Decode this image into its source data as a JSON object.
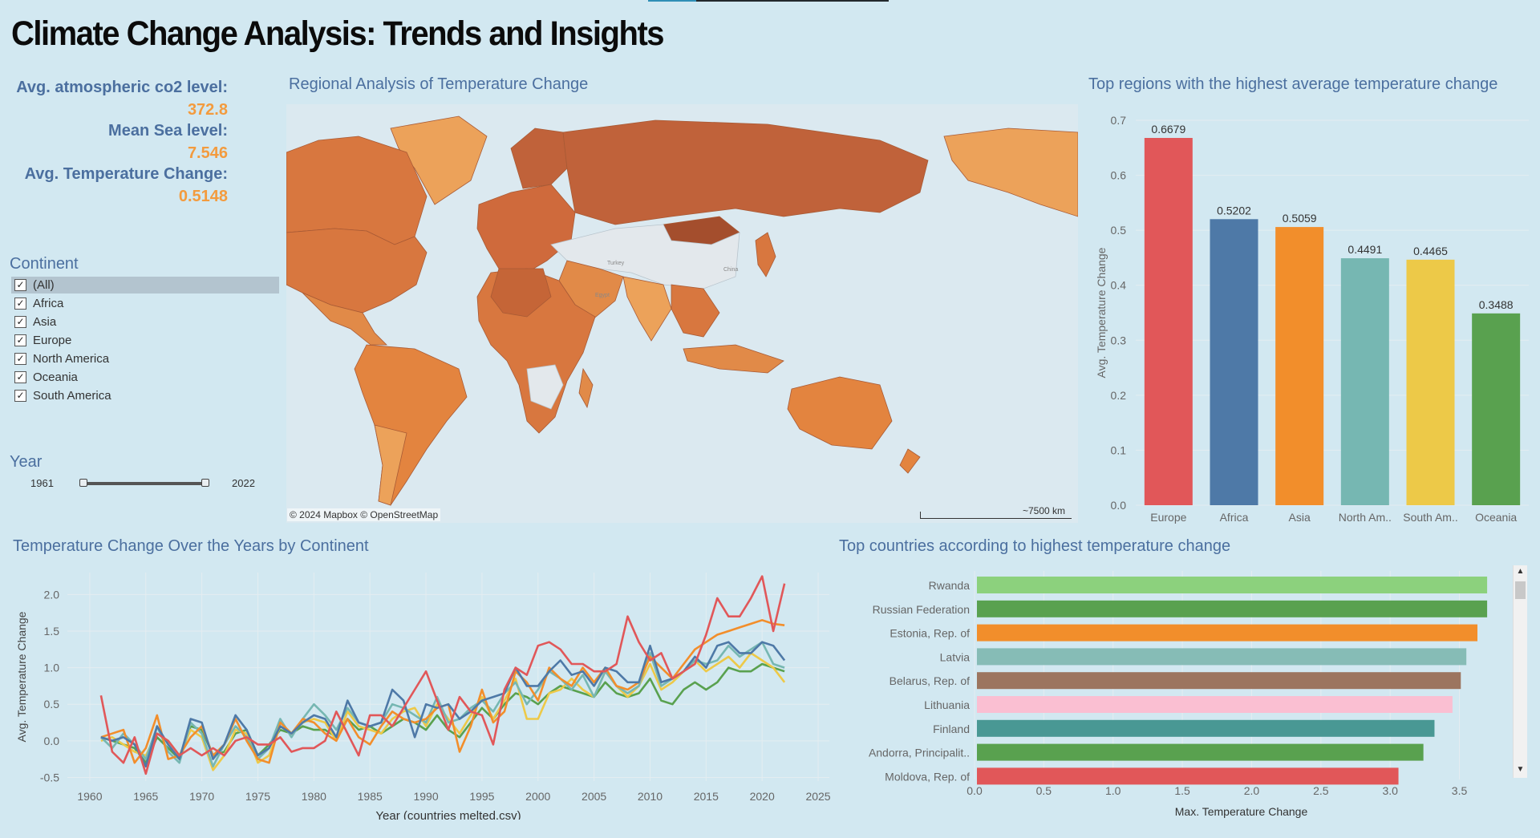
{
  "title": "Climate Change Analysis: Trends and Insights",
  "kpis": [
    {
      "label": "Avg. atmospheric co2 level:",
      "value": "372.8"
    },
    {
      "label": "Mean Sea level:",
      "value": "7.546"
    },
    {
      "label": "Avg. Temperature Change:",
      "value": "0.5148"
    }
  ],
  "filters": {
    "continent": {
      "title": "Continent",
      "options": [
        {
          "label": "(All)",
          "checked": true
        },
        {
          "label": "Africa",
          "checked": true
        },
        {
          "label": "Asia",
          "checked": true
        },
        {
          "label": "Europe",
          "checked": true
        },
        {
          "label": "North America",
          "checked": true
        },
        {
          "label": "Oceania",
          "checked": true
        },
        {
          "label": "South America",
          "checked": true
        }
      ]
    },
    "year": {
      "title": "Year",
      "min": "1961",
      "max": "2022"
    }
  },
  "map": {
    "title": "Regional Analysis of Temperature Change",
    "attribution": "© 2024 Mapbox © OpenStreetMap",
    "scale_label": "~7500 km",
    "place_labels": [
      "Turkey",
      "China",
      "Egypt"
    ]
  },
  "colors": {
    "title": "#4b6f9f",
    "kpi_value": "#f39b3e",
    "map_ocean": "#dbe9f0",
    "map_dark": "#c0623a",
    "map_mid": "#d8773f",
    "map_light": "#eca25a",
    "map_nodata": "#e3e8ec"
  },
  "chart_data": [
    {
      "type": "bar",
      "title": "Top regions with the highest average temperature change",
      "ylabel": "Avg. Temperature Change",
      "xlabel": "",
      "categories": [
        "Europe",
        "Africa",
        "Asia",
        "North Am..",
        "South Am..",
        "Oceania"
      ],
      "values": [
        0.6679,
        0.5202,
        0.5059,
        0.4491,
        0.4465,
        0.3488
      ],
      "value_labels": [
        "0.6679",
        "0.5202",
        "0.5059",
        "0.4491",
        "0.4465",
        "0.3488"
      ],
      "colors": [
        "#e15759",
        "#4e79a7",
        "#f28e2b",
        "#76b7b2",
        "#edc948",
        "#59a14f"
      ],
      "ylim": [
        0,
        0.7
      ],
      "yticks": [
        "0.0",
        "0.1",
        "0.2",
        "0.3",
        "0.4",
        "0.5",
        "0.6",
        "0.7"
      ],
      "grid": true
    },
    {
      "type": "line",
      "title": "Temperature Change Over the Years by Continent",
      "xlabel": "Year (countries melted.csv)",
      "ylabel": "Avg. Temperature Change",
      "xlim": [
        1958,
        2026
      ],
      "ylim": [
        -0.55,
        2.3
      ],
      "xticks": [
        "1960",
        "1965",
        "1970",
        "1975",
        "1980",
        "1985",
        "1990",
        "1995",
        "2000",
        "2005",
        "2010",
        "2015",
        "2020",
        "2025"
      ],
      "yticks": [
        "-0.5",
        "0.0",
        "0.5",
        "1.0",
        "1.5",
        "2.0"
      ],
      "x_start": 1961,
      "series": [
        {
          "color": "#59a14f",
          "values": [
            0.05,
            0.0,
            -0.05,
            -0.1,
            -0.3,
            0.05,
            -0.1,
            -0.25,
            0.2,
            0.15,
            -0.2,
            -0.15,
            0.1,
            0.15,
            -0.2,
            -0.05,
            0.15,
            0.1,
            0.2,
            0.15,
            0.15,
            0.05,
            0.3,
            0.15,
            0.2,
            0.1,
            0.2,
            0.3,
            0.25,
            0.15,
            0.35,
            0.15,
            0.05,
            0.25,
            0.45,
            0.3,
            0.5,
            0.65,
            0.6,
            0.5,
            0.65,
            0.75,
            0.7,
            0.65,
            0.6,
            0.8,
            0.65,
            0.6,
            0.65,
            0.85,
            0.55,
            0.5,
            0.7,
            0.8,
            0.7,
            0.8,
            1.0,
            0.95,
            0.95,
            1.05,
            1.0,
            0.95
          ]
        },
        {
          "color": "#edc948",
          "values": [
            0.0,
            0.05,
            -0.05,
            -0.15,
            -0.2,
            0.1,
            0.0,
            -0.2,
            0.15,
            0.05,
            -0.4,
            -0.2,
            0.15,
            0.1,
            -0.3,
            -0.2,
            0.2,
            0.1,
            0.25,
            0.3,
            0.25,
            0.0,
            0.4,
            0.2,
            0.15,
            0.1,
            0.3,
            0.4,
            0.45,
            0.2,
            0.5,
            0.3,
            0.1,
            0.35,
            0.6,
            0.3,
            0.55,
            0.85,
            0.3,
            0.3,
            0.65,
            0.7,
            0.85,
            0.7,
            0.6,
            0.95,
            0.75,
            0.6,
            0.75,
            1.05,
            0.7,
            0.8,
            0.95,
            1.1,
            0.95,
            1.05,
            1.15,
            1.0,
            1.2,
            1.1,
            1.0,
            0.8
          ]
        },
        {
          "color": "#76b7b2",
          "values": [
            0.05,
            -0.1,
            0.1,
            -0.05,
            -0.25,
            0.2,
            -0.15,
            -0.3,
            0.25,
            0.1,
            -0.35,
            -0.05,
            0.2,
            0.05,
            -0.25,
            -0.1,
            0.3,
            0.05,
            0.3,
            0.5,
            0.35,
            0.15,
            0.45,
            0.25,
            0.2,
            0.25,
            0.5,
            0.45,
            0.35,
            0.25,
            0.6,
            0.25,
            0.3,
            0.45,
            0.55,
            0.4,
            0.65,
            0.8,
            0.5,
            0.7,
            0.95,
            0.85,
            0.7,
            0.9,
            0.6,
            0.95,
            0.75,
            0.65,
            0.75,
            1.2,
            0.75,
            0.85,
            0.95,
            1.1,
            1.05,
            1.1,
            1.3,
            1.15,
            1.25,
            1.35,
            1.05,
            1.0
          ]
        },
        {
          "color": "#f28e2b",
          "values": [
            0.05,
            0.1,
            0.15,
            -0.3,
            -0.1,
            0.35,
            -0.25,
            -0.2,
            0.05,
            0.2,
            -0.2,
            -0.05,
            0.3,
            0.0,
            -0.25,
            -0.3,
            0.25,
            0.1,
            0.3,
            0.25,
            0.1,
            0.0,
            0.3,
            0.05,
            -0.05,
            0.2,
            0.4,
            0.3,
            0.25,
            0.3,
            0.45,
            0.5,
            -0.15,
            0.2,
            0.7,
            0.25,
            0.4,
            0.95,
            0.8,
            0.55,
            1.0,
            0.85,
            0.75,
            1.0,
            0.8,
            1.0,
            0.75,
            0.7,
            0.8,
            1.15,
            1.0,
            0.85,
            1.05,
            1.25,
            1.35,
            1.45,
            1.5,
            1.55,
            1.6,
            1.65,
            1.6,
            1.58
          ]
        },
        {
          "color": "#4e79a7",
          "values": [
            0.05,
            0.0,
            0.05,
            -0.05,
            -0.35,
            0.2,
            -0.05,
            -0.25,
            0.3,
            0.25,
            -0.25,
            -0.05,
            0.35,
            0.15,
            -0.2,
            -0.1,
            0.2,
            0.1,
            0.25,
            0.35,
            0.3,
            0.05,
            0.55,
            0.25,
            0.2,
            0.25,
            0.7,
            0.55,
            0.05,
            0.5,
            0.45,
            0.5,
            0.3,
            0.4,
            0.55,
            0.6,
            0.65,
            1.0,
            0.75,
            0.75,
            0.95,
            1.1,
            0.9,
            0.95,
            0.75,
            1.0,
            0.95,
            0.8,
            0.8,
            1.3,
            0.8,
            0.85,
            0.95,
            1.15,
            1.0,
            1.3,
            1.35,
            1.2,
            1.2,
            1.35,
            1.3,
            1.1
          ]
        },
        {
          "color": "#e15759",
          "values": [
            0.62,
            -0.15,
            -0.3,
            0.05,
            -0.45,
            0.1,
            0.0,
            -0.2,
            -0.1,
            -0.2,
            -0.1,
            -0.2,
            0.0,
            0.05,
            -0.05,
            -0.05,
            0.05,
            -0.15,
            -0.1,
            -0.1,
            0.0,
            0.4,
            0.1,
            -0.2,
            0.35,
            0.35,
            0.2,
            0.45,
            0.7,
            0.95,
            0.55,
            0.15,
            0.6,
            0.4,
            0.35,
            -0.05,
            0.7,
            1.0,
            0.9,
            1.3,
            1.35,
            1.25,
            1.05,
            1.05,
            0.95,
            0.95,
            1.05,
            1.7,
            1.35,
            1.1,
            1.2,
            0.85,
            0.95,
            1.05,
            1.45,
            1.95,
            1.7,
            1.7,
            1.95,
            2.25,
            1.5,
            2.15
          ]
        }
      ],
      "grid": true
    },
    {
      "type": "bar",
      "orientation": "horizontal",
      "title": "Top countries according to highest temperature change",
      "xlabel": "Max. Temperature Change",
      "ylabel": "",
      "categories": [
        "Rwanda",
        "Russian Federation",
        "Estonia, Rep. of",
        "Latvia",
        "Belarus, Rep. of",
        "Lithuania",
        "Finland",
        "Andorra, Principalit..",
        "Moldova, Rep. of"
      ],
      "values": [
        3.7,
        3.7,
        3.63,
        3.55,
        3.51,
        3.45,
        3.32,
        3.24,
        3.06
      ],
      "colors": [
        "#8cd17d",
        "#59a14f",
        "#f28e2b",
        "#86bcb6",
        "#9c755f",
        "#fabfd2",
        "#499894",
        "#59a14f",
        "#e15759"
      ],
      "xlim": [
        0,
        3.85
      ],
      "xticks": [
        "0.0",
        "0.5",
        "1.0",
        "1.5",
        "2.0",
        "2.5",
        "3.0",
        "3.5"
      ],
      "grid": true
    }
  ]
}
